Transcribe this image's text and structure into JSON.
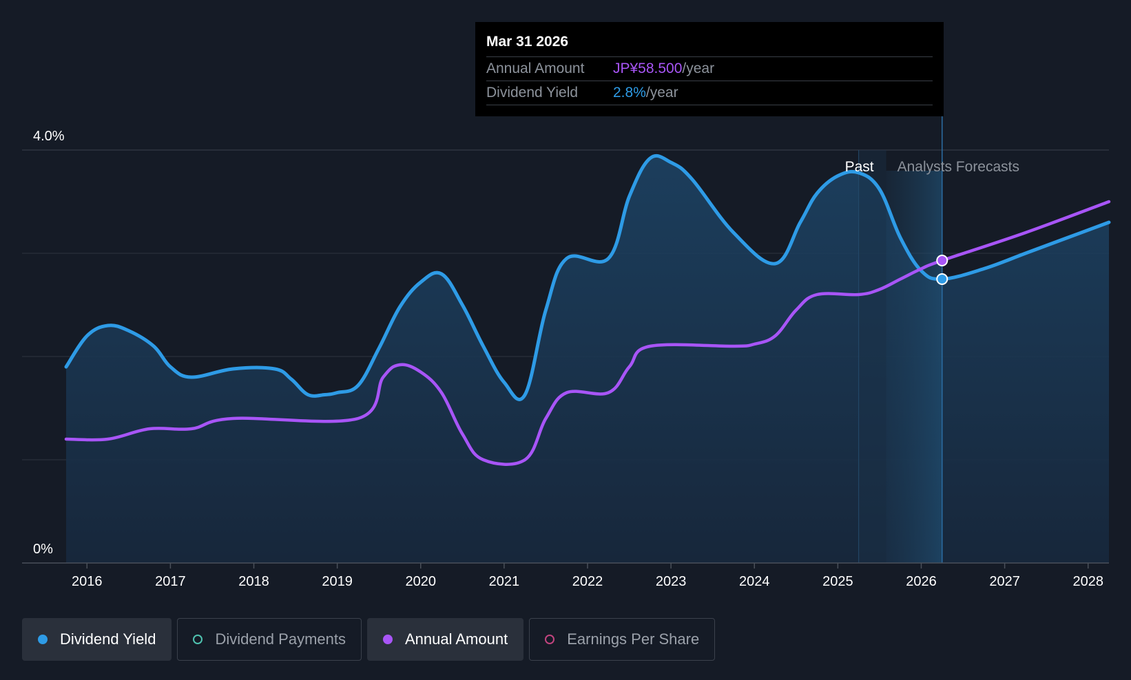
{
  "colors": {
    "background": "#151b26",
    "dividend_yield": "#2e9be6",
    "annual_amount": "#a855f7",
    "dividend_payments": "#4fc3b0",
    "earnings_per_share": "#c2447f",
    "forecast_text": "#8c929b"
  },
  "tooltip": {
    "date": "Mar 31 2026",
    "amount_label": "Annual Amount",
    "amount_value": "JP¥58.500",
    "amount_unit": "/year",
    "yield_label": "Dividend Yield",
    "yield_value": "2.8%",
    "yield_unit": "/year"
  },
  "legend": [
    {
      "label": "Dividend Yield",
      "icon": "filled-circle",
      "active": true,
      "color_key": "dividend_yield"
    },
    {
      "label": "Dividend Payments",
      "icon": "hollow-circle",
      "active": false,
      "color_key": "dividend_payments"
    },
    {
      "label": "Annual Amount",
      "icon": "filled-circle",
      "active": true,
      "color_key": "annual_amount"
    },
    {
      "label": "Earnings Per Share",
      "icon": "hollow-circle",
      "active": false,
      "color_key": "earnings_per_share"
    }
  ],
  "chart_data": {
    "type": "area",
    "ylim": [
      0,
      4
    ],
    "y_ticks": [
      {
        "value": 4,
        "label": "4.0%"
      },
      {
        "value": 0,
        "label": "0%"
      }
    ],
    "grid_lines": [
      0,
      1,
      2,
      3,
      4
    ],
    "xlim": [
      2015.75,
      2028.25
    ],
    "x_ticks": [
      2016,
      2017,
      2018,
      2019,
      2020,
      2021,
      2022,
      2023,
      2024,
      2025,
      2026,
      2027,
      2028
    ],
    "regions": {
      "past_label": "Past",
      "forecast_label": "Analysts Forecasts",
      "past_end": 2025.25,
      "forecast_shade_start": 2025.58,
      "cursor": 2026.25
    },
    "series": [
      {
        "name": "Dividend Yield",
        "unit": "%",
        "filled": true,
        "points": [
          [
            2015.75,
            1.9
          ],
          [
            2016.0,
            2.2
          ],
          [
            2016.25,
            2.3
          ],
          [
            2016.5,
            2.25
          ],
          [
            2016.8,
            2.1
          ],
          [
            2017.0,
            1.9
          ],
          [
            2017.25,
            1.8
          ],
          [
            2017.75,
            1.88
          ],
          [
            2018.25,
            1.88
          ],
          [
            2018.45,
            1.78
          ],
          [
            2018.65,
            1.63
          ],
          [
            2018.85,
            1.63
          ],
          [
            2019.0,
            1.65
          ],
          [
            2019.25,
            1.72
          ],
          [
            2019.5,
            2.08
          ],
          [
            2019.75,
            2.48
          ],
          [
            2020.0,
            2.72
          ],
          [
            2020.25,
            2.8
          ],
          [
            2020.5,
            2.5
          ],
          [
            2020.75,
            2.1
          ],
          [
            2021.0,
            1.75
          ],
          [
            2021.25,
            1.63
          ],
          [
            2021.5,
            2.45
          ],
          [
            2021.75,
            2.95
          ],
          [
            2022.25,
            2.95
          ],
          [
            2022.5,
            3.55
          ],
          [
            2022.75,
            3.92
          ],
          [
            2023.0,
            3.88
          ],
          [
            2023.25,
            3.72
          ],
          [
            2023.75,
            3.2
          ],
          [
            2024.25,
            2.9
          ],
          [
            2024.55,
            3.3
          ],
          [
            2024.75,
            3.58
          ],
          [
            2025.0,
            3.75
          ],
          [
            2025.25,
            3.78
          ],
          [
            2025.5,
            3.62
          ],
          [
            2025.75,
            3.15
          ],
          [
            2026.0,
            2.83
          ],
          [
            2026.25,
            2.75
          ],
          [
            2026.75,
            2.85
          ],
          [
            2027.25,
            3.0
          ],
          [
            2027.75,
            3.15
          ],
          [
            2028.25,
            3.3
          ]
        ]
      },
      {
        "name": "Annual Amount",
        "unit": "JP¥",
        "filled": false,
        "points": [
          [
            2015.75,
            1.2
          ],
          [
            2016.25,
            1.2
          ],
          [
            2016.75,
            1.3
          ],
          [
            2017.25,
            1.3
          ],
          [
            2017.75,
            1.4
          ],
          [
            2019.25,
            1.4
          ],
          [
            2019.55,
            1.8
          ],
          [
            2019.75,
            1.92
          ],
          [
            2020.0,
            1.85
          ],
          [
            2020.25,
            1.65
          ],
          [
            2020.5,
            1.25
          ],
          [
            2020.75,
            1.0
          ],
          [
            2021.25,
            1.0
          ],
          [
            2021.5,
            1.4
          ],
          [
            2021.75,
            1.65
          ],
          [
            2022.25,
            1.65
          ],
          [
            2022.5,
            1.9
          ],
          [
            2022.75,
            2.1
          ],
          [
            2023.75,
            2.1
          ],
          [
            2024.0,
            2.12
          ],
          [
            2024.25,
            2.2
          ],
          [
            2024.5,
            2.45
          ],
          [
            2024.75,
            2.6
          ],
          [
            2025.25,
            2.6
          ],
          [
            2025.5,
            2.65
          ],
          [
            2025.75,
            2.75
          ],
          [
            2026.0,
            2.85
          ],
          [
            2026.25,
            2.93
          ],
          [
            2027.25,
            3.2
          ],
          [
            2028.25,
            3.5
          ]
        ]
      }
    ],
    "highlighted_points": [
      {
        "series": "Annual Amount",
        "x": 2026.25,
        "y": 2.93
      },
      {
        "series": "Dividend Yield",
        "x": 2026.25,
        "y": 2.75
      }
    ]
  }
}
